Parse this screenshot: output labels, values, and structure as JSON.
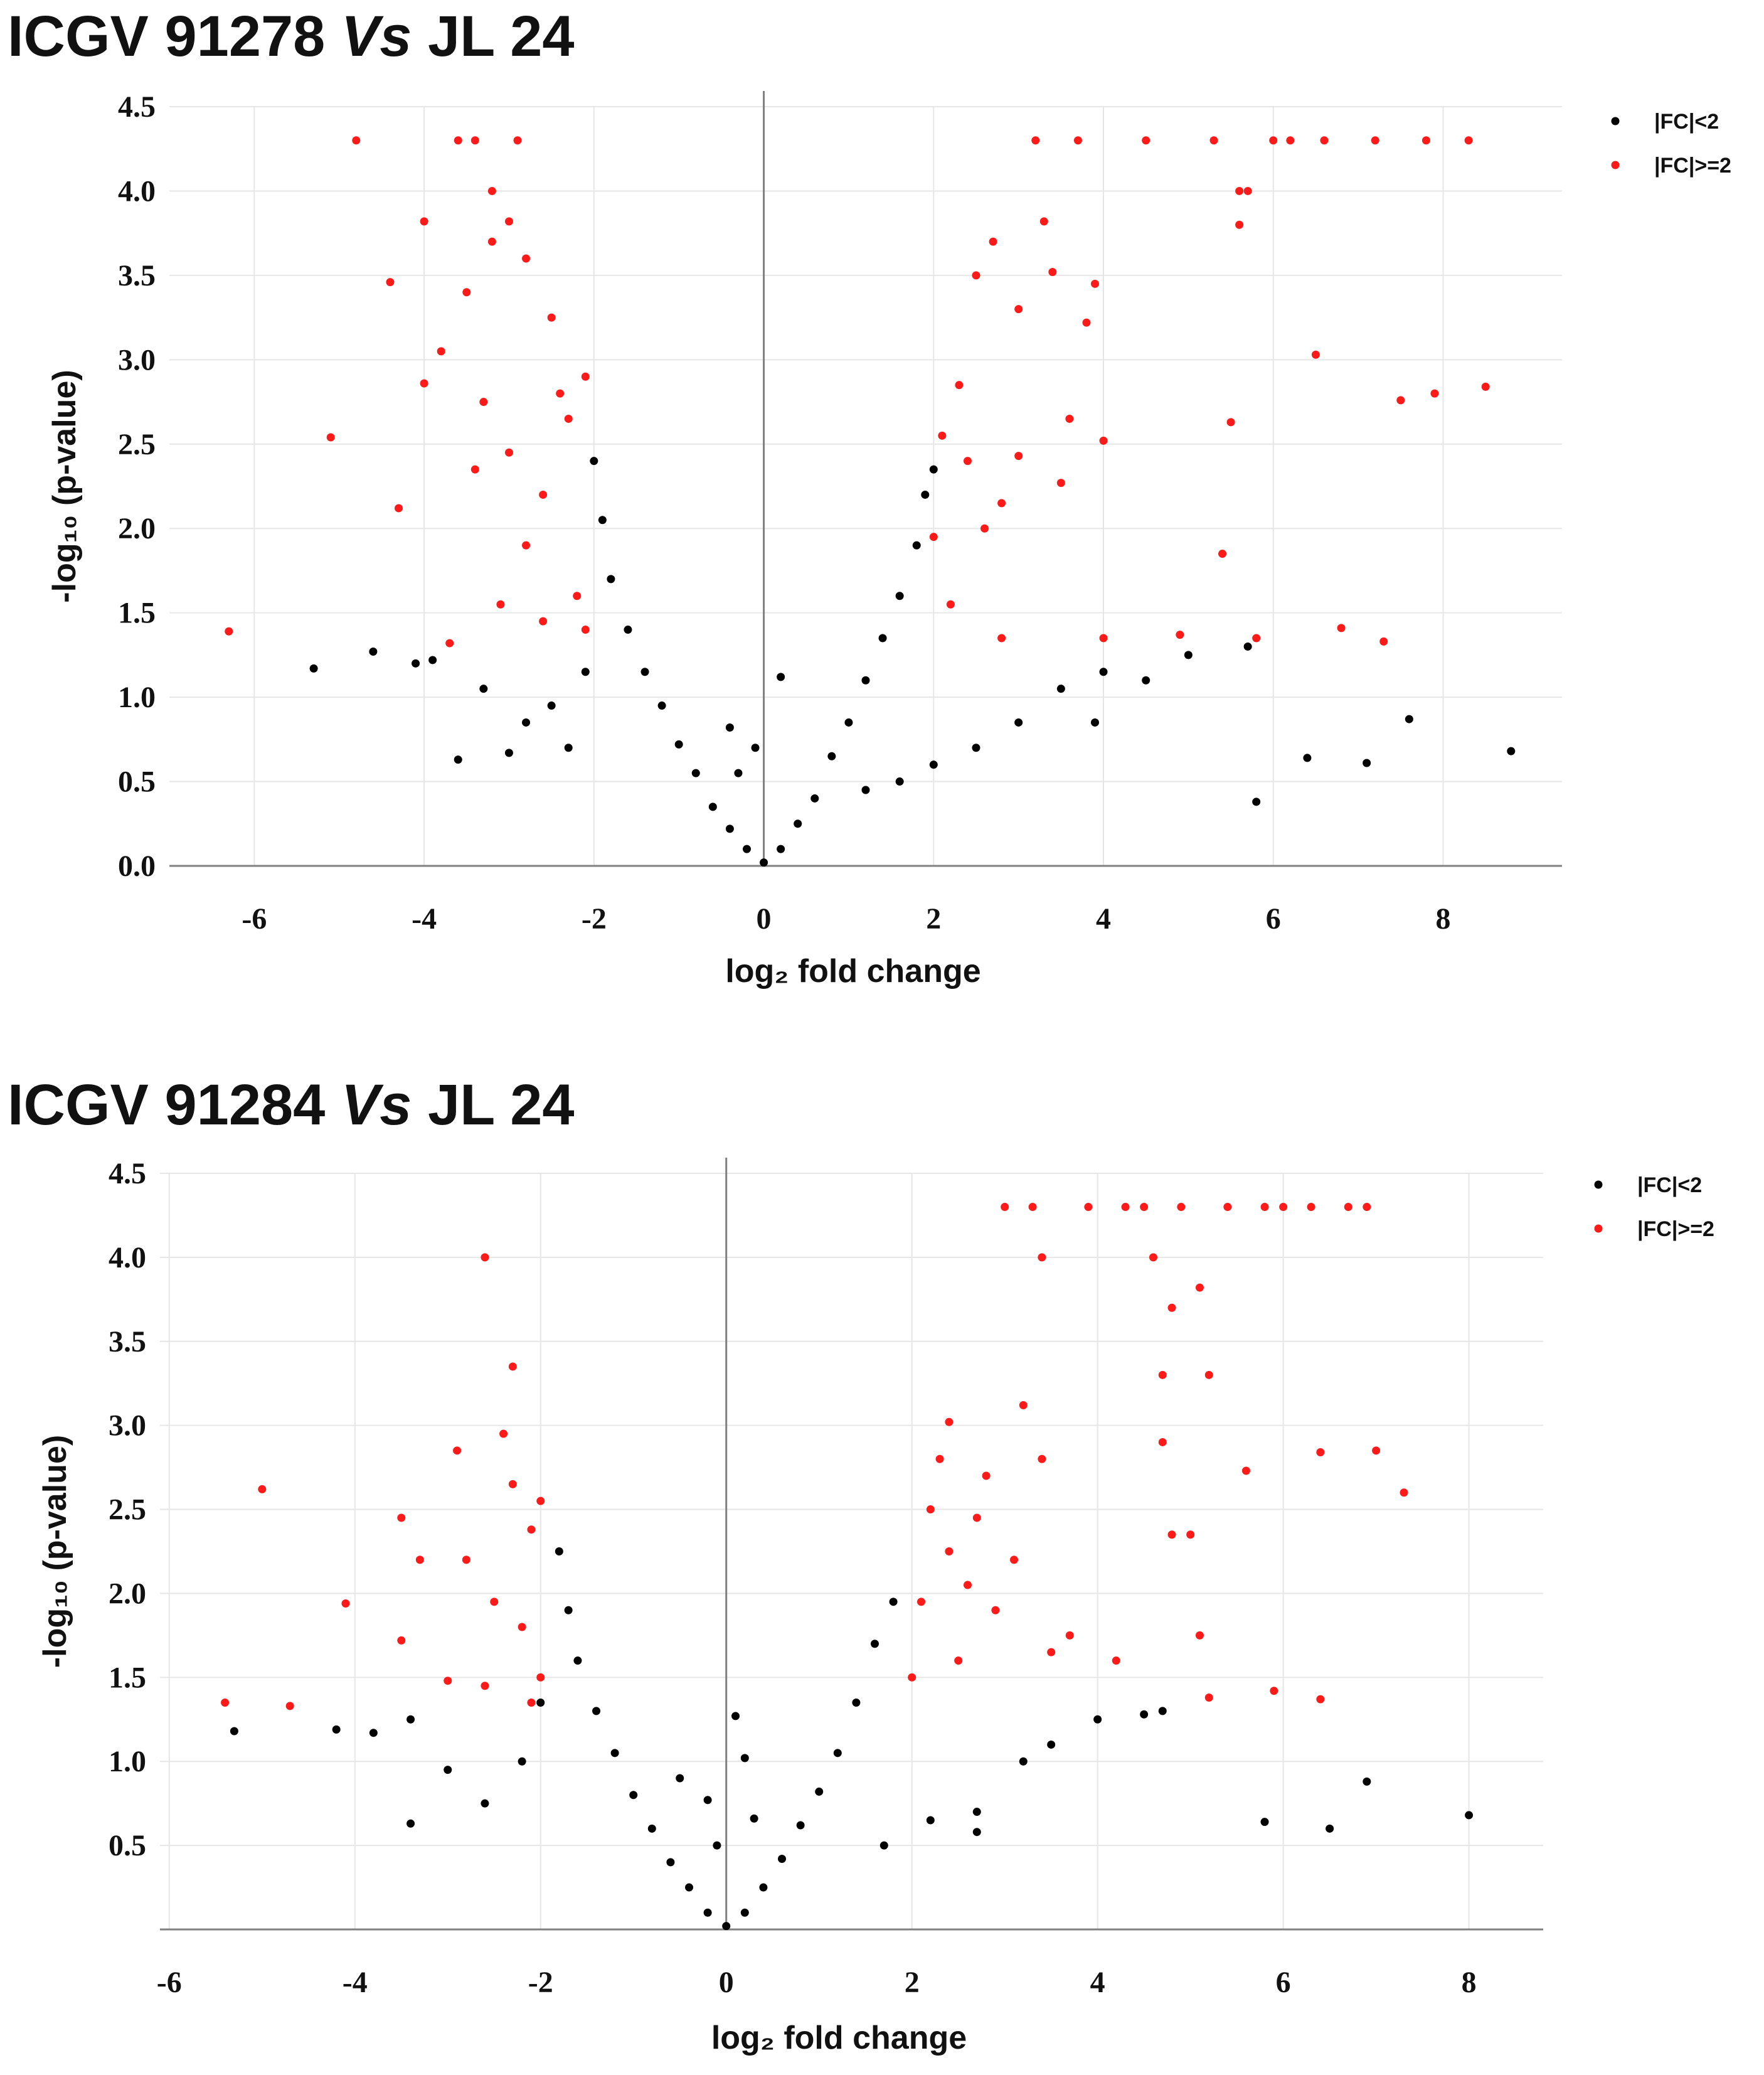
{
  "colors": {
    "ns": "#000000",
    "sig": "#ff1a1a"
  },
  "chart_data": [
    {
      "type": "scatter",
      "title": "ICGV 91278 Vs JL 24",
      "title_parts": [
        "ICGV 91278 ",
        "Vs",
        " JL 24"
      ],
      "xlabel": "log₂ fold change",
      "ylabel": "-log₁₀ (p-value)",
      "xlim": [
        -7,
        9.4
      ],
      "ylim": [
        0,
        4.5
      ],
      "xticks": [
        -6,
        -4,
        -2,
        0,
        2,
        4,
        6,
        8
      ],
      "yticks": [
        0.0,
        0.5,
        1.0,
        1.5,
        2.0,
        2.5,
        3.0,
        3.5,
        4.0,
        4.5
      ],
      "ytick_labels": [
        "0.0",
        "0.5",
        "1.0",
        "1.5",
        "2.0",
        "2.5",
        "3.0",
        "3.5",
        "4.0",
        "4.5"
      ],
      "grid": true,
      "legend_position": "top-right",
      "series": [
        {
          "name": "|FC|<2",
          "color": "#000000",
          "points": [
            [
              -5.3,
              1.17
            ],
            [
              -4.6,
              1.27
            ],
            [
              -4.1,
              1.2
            ],
            [
              -3.9,
              1.22
            ],
            [
              -3.6,
              0.63
            ],
            [
              -3.3,
              1.05
            ],
            [
              -3.0,
              0.67
            ],
            [
              -2.8,
              0.85
            ],
            [
              -2.5,
              0.95
            ],
            [
              -2.3,
              0.7
            ],
            [
              -2.1,
              1.15
            ],
            [
              -2.0,
              2.4
            ],
            [
              -1.9,
              2.05
            ],
            [
              -1.8,
              1.7
            ],
            [
              -1.6,
              1.4
            ],
            [
              -1.4,
              1.15
            ],
            [
              -1.2,
              0.95
            ],
            [
              -1.0,
              0.72
            ],
            [
              -0.8,
              0.55
            ],
            [
              -0.6,
              0.35
            ],
            [
              -0.4,
              0.22
            ],
            [
              -0.2,
              0.1
            ],
            [
              -0.4,
              0.82
            ],
            [
              -0.3,
              0.55
            ],
            [
              -0.1,
              0.7
            ],
            [
              0.0,
              0.02
            ],
            [
              0.2,
              0.1
            ],
            [
              0.4,
              0.25
            ],
            [
              0.6,
              0.4
            ],
            [
              0.8,
              0.65
            ],
            [
              1.0,
              0.85
            ],
            [
              1.2,
              1.1
            ],
            [
              1.4,
              1.35
            ],
            [
              1.6,
              1.6
            ],
            [
              1.8,
              1.9
            ],
            [
              1.9,
              2.2
            ],
            [
              2.0,
              2.35
            ],
            [
              0.2,
              1.12
            ],
            [
              1.2,
              0.45
            ],
            [
              1.6,
              0.5
            ],
            [
              2.0,
              0.6
            ],
            [
              2.5,
              0.7
            ],
            [
              3.0,
              0.85
            ],
            [
              3.5,
              1.05
            ],
            [
              4.0,
              1.15
            ],
            [
              4.5,
              1.1
            ],
            [
              5.0,
              1.25
            ],
            [
              5.7,
              1.3
            ],
            [
              3.9,
              0.85
            ],
            [
              6.4,
              0.64
            ],
            [
              7.1,
              0.61
            ],
            [
              7.6,
              0.87
            ],
            [
              8.8,
              0.68
            ],
            [
              5.8,
              0.38
            ]
          ]
        },
        {
          "name": "|FC|>=2",
          "color": "#ff1a1a",
          "points": [
            [
              -6.3,
              1.39
            ],
            [
              -5.1,
              2.54
            ],
            [
              -4.8,
              4.3
            ],
            [
              -4.4,
              3.46
            ],
            [
              -4.3,
              2.12
            ],
            [
              -4.0,
              3.82
            ],
            [
              -4.0,
              2.86
            ],
            [
              -3.8,
              3.05
            ],
            [
              -3.7,
              1.32
            ],
            [
              -3.6,
              4.3
            ],
            [
              -3.5,
              3.4
            ],
            [
              -3.4,
              4.3
            ],
            [
              -3.3,
              2.75
            ],
            [
              -3.2,
              3.7
            ],
            [
              -3.2,
              4.0
            ],
            [
              -3.0,
              3.82
            ],
            [
              -3.0,
              2.45
            ],
            [
              -2.9,
              4.3
            ],
            [
              -2.8,
              1.9
            ],
            [
              -2.8,
              3.6
            ],
            [
              -2.6,
              2.2
            ],
            [
              -2.5,
              3.25
            ],
            [
              -2.4,
              2.8
            ],
            [
              -2.3,
              2.65
            ],
            [
              -2.2,
              1.6
            ],
            [
              -2.1,
              2.9
            ],
            [
              -2.1,
              1.4
            ],
            [
              -2.6,
              1.45
            ],
            [
              -3.1,
              1.55
            ],
            [
              -3.4,
              2.35
            ],
            [
              2.0,
              1.95
            ],
            [
              2.1,
              2.55
            ],
            [
              2.2,
              1.55
            ],
            [
              2.3,
              2.85
            ],
            [
              2.4,
              2.4
            ],
            [
              2.5,
              3.5
            ],
            [
              2.6,
              2.0
            ],
            [
              2.7,
              3.7
            ],
            [
              2.8,
              2.15
            ],
            [
              2.8,
              1.35
            ],
            [
              3.0,
              3.3
            ],
            [
              3.0,
              2.43
            ],
            [
              3.2,
              4.3
            ],
            [
              3.3,
              3.82
            ],
            [
              3.4,
              3.52
            ],
            [
              3.5,
              2.27
            ],
            [
              3.6,
              2.65
            ],
            [
              3.7,
              4.3
            ],
            [
              3.8,
              3.22
            ],
            [
              3.9,
              3.45
            ],
            [
              4.0,
              2.52
            ],
            [
              4.0,
              1.35
            ],
            [
              4.5,
              4.3
            ],
            [
              4.9,
              1.37
            ],
            [
              5.3,
              4.3
            ],
            [
              5.4,
              1.85
            ],
            [
              5.5,
              2.63
            ],
            [
              5.6,
              4.0
            ],
            [
              5.6,
              3.8
            ],
            [
              5.7,
              4.0
            ],
            [
              5.8,
              1.35
            ],
            [
              6.0,
              4.3
            ],
            [
              6.2,
              4.3
            ],
            [
              6.5,
              3.03
            ],
            [
              6.6,
              4.3
            ],
            [
              6.8,
              1.41
            ],
            [
              7.2,
              4.3
            ],
            [
              7.3,
              1.33
            ],
            [
              7.5,
              2.76
            ],
            [
              7.8,
              4.3
            ],
            [
              7.9,
              2.8
            ],
            [
              8.3,
              4.3
            ],
            [
              8.5,
              2.84
            ]
          ]
        }
      ]
    },
    {
      "type": "scatter",
      "title": "ICGV 91284 Vs JL 24",
      "title_parts": [
        "ICGV 91284 ",
        "Vs",
        " JL 24"
      ],
      "xlabel": "log₂ fold change",
      "ylabel": "-log₁₀ (p-value)",
      "xlim": [
        -6.1,
        8.8
      ],
      "ylim": [
        0,
        4.5
      ],
      "xticks": [
        -6,
        -4,
        -2,
        0,
        2,
        4,
        6,
        8
      ],
      "yticks": [
        0.5,
        1.0,
        1.5,
        2.0,
        2.5,
        3.0,
        3.5,
        4.0,
        4.5
      ],
      "ytick_labels": [
        "0.5",
        "1.0",
        "1.5",
        "2.0",
        "2.5",
        "3.0",
        "3.5",
        "4.0",
        "4.5"
      ],
      "grid": true,
      "legend_position": "top-right",
      "series": [
        {
          "name": "|FC|<2",
          "color": "#000000",
          "points": [
            [
              -5.3,
              1.18
            ],
            [
              -4.2,
              1.19
            ],
            [
              -3.8,
              1.17
            ],
            [
              -3.4,
              1.25
            ],
            [
              -3.4,
              0.63
            ],
            [
              -3.0,
              0.95
            ],
            [
              -2.6,
              0.75
            ],
            [
              -2.2,
              1.0
            ],
            [
              -2.0,
              1.35
            ],
            [
              -1.8,
              2.25
            ],
            [
              -1.7,
              1.9
            ],
            [
              -1.6,
              1.6
            ],
            [
              -1.4,
              1.3
            ],
            [
              -1.2,
              1.05
            ],
            [
              -1.0,
              0.8
            ],
            [
              -0.8,
              0.6
            ],
            [
              -0.6,
              0.4
            ],
            [
              -0.4,
              0.25
            ],
            [
              -0.2,
              0.1
            ],
            [
              -0.5,
              0.9
            ],
            [
              -0.2,
              0.77
            ],
            [
              -0.1,
              0.5
            ],
            [
              0.0,
              0.02
            ],
            [
              0.1,
              1.27
            ],
            [
              0.2,
              1.02
            ],
            [
              0.3,
              0.66
            ],
            [
              0.2,
              0.1
            ],
            [
              0.4,
              0.25
            ],
            [
              0.6,
              0.42
            ],
            [
              0.8,
              0.62
            ],
            [
              1.0,
              0.82
            ],
            [
              1.2,
              1.05
            ],
            [
              1.4,
              1.35
            ],
            [
              1.6,
              1.7
            ],
            [
              1.8,
              1.95
            ],
            [
              1.7,
              0.5
            ],
            [
              2.2,
              0.65
            ],
            [
              2.7,
              0.7
            ],
            [
              3.2,
              1.0
            ],
            [
              3.5,
              1.1
            ],
            [
              4.0,
              1.25
            ],
            [
              4.5,
              1.28
            ],
            [
              4.7,
              1.3
            ],
            [
              2.7,
              0.58
            ],
            [
              5.8,
              0.64
            ],
            [
              6.5,
              0.6
            ],
            [
              6.9,
              0.88
            ],
            [
              8.0,
              0.68
            ]
          ]
        },
        {
          "name": "|FC|>=2",
          "color": "#ff1a1a",
          "points": [
            [
              -5.4,
              1.35
            ],
            [
              -5.0,
              2.62
            ],
            [
              -4.7,
              1.33
            ],
            [
              -4.1,
              1.94
            ],
            [
              -3.5,
              1.72
            ],
            [
              -3.5,
              2.45
            ],
            [
              -3.3,
              2.2
            ],
            [
              -3.0,
              1.48
            ],
            [
              -2.9,
              2.85
            ],
            [
              -2.8,
              2.2
            ],
            [
              -2.6,
              4.0
            ],
            [
              -2.5,
              1.95
            ],
            [
              -2.4,
              2.95
            ],
            [
              -2.3,
              3.35
            ],
            [
              -2.3,
              2.65
            ],
            [
              -2.2,
              1.8
            ],
            [
              -2.1,
              2.38
            ],
            [
              -2.0,
              1.5
            ],
            [
              -2.0,
              2.55
            ],
            [
              -2.1,
              1.35
            ],
            [
              -2.6,
              1.45
            ],
            [
              2.0,
              1.5
            ],
            [
              2.1,
              1.95
            ],
            [
              2.2,
              2.5
            ],
            [
              2.3,
              2.8
            ],
            [
              2.4,
              2.25
            ],
            [
              2.4,
              3.02
            ],
            [
              2.5,
              1.6
            ],
            [
              2.6,
              2.05
            ],
            [
              2.7,
              2.45
            ],
            [
              2.8,
              2.7
            ],
            [
              2.9,
              1.9
            ],
            [
              3.0,
              4.3
            ],
            [
              3.1,
              2.2
            ],
            [
              3.2,
              3.12
            ],
            [
              3.3,
              4.3
            ],
            [
              3.4,
              2.8
            ],
            [
              3.4,
              4.0
            ],
            [
              3.5,
              1.65
            ],
            [
              3.7,
              1.75
            ],
            [
              3.9,
              4.3
            ],
            [
              4.2,
              1.6
            ],
            [
              4.3,
              4.3
            ],
            [
              4.5,
              4.3
            ],
            [
              4.6,
              4.0
            ],
            [
              4.7,
              3.3
            ],
            [
              4.7,
              2.9
            ],
            [
              4.8,
              3.7
            ],
            [
              4.8,
              2.35
            ],
            [
              4.9,
              4.3
            ],
            [
              5.0,
              2.35
            ],
            [
              5.1,
              3.82
            ],
            [
              5.1,
              1.75
            ],
            [
              5.2,
              3.3
            ],
            [
              5.2,
              1.38
            ],
            [
              5.4,
              4.3
            ],
            [
              5.6,
              2.73
            ],
            [
              5.8,
              4.3
            ],
            [
              5.9,
              1.42
            ],
            [
              6.0,
              4.3
            ],
            [
              6.3,
              4.3
            ],
            [
              6.4,
              2.84
            ],
            [
              6.4,
              1.37
            ],
            [
              6.7,
              4.3
            ],
            [
              7.0,
              2.85
            ],
            [
              7.3,
              2.6
            ],
            [
              6.9,
              4.3
            ]
          ]
        }
      ]
    }
  ]
}
